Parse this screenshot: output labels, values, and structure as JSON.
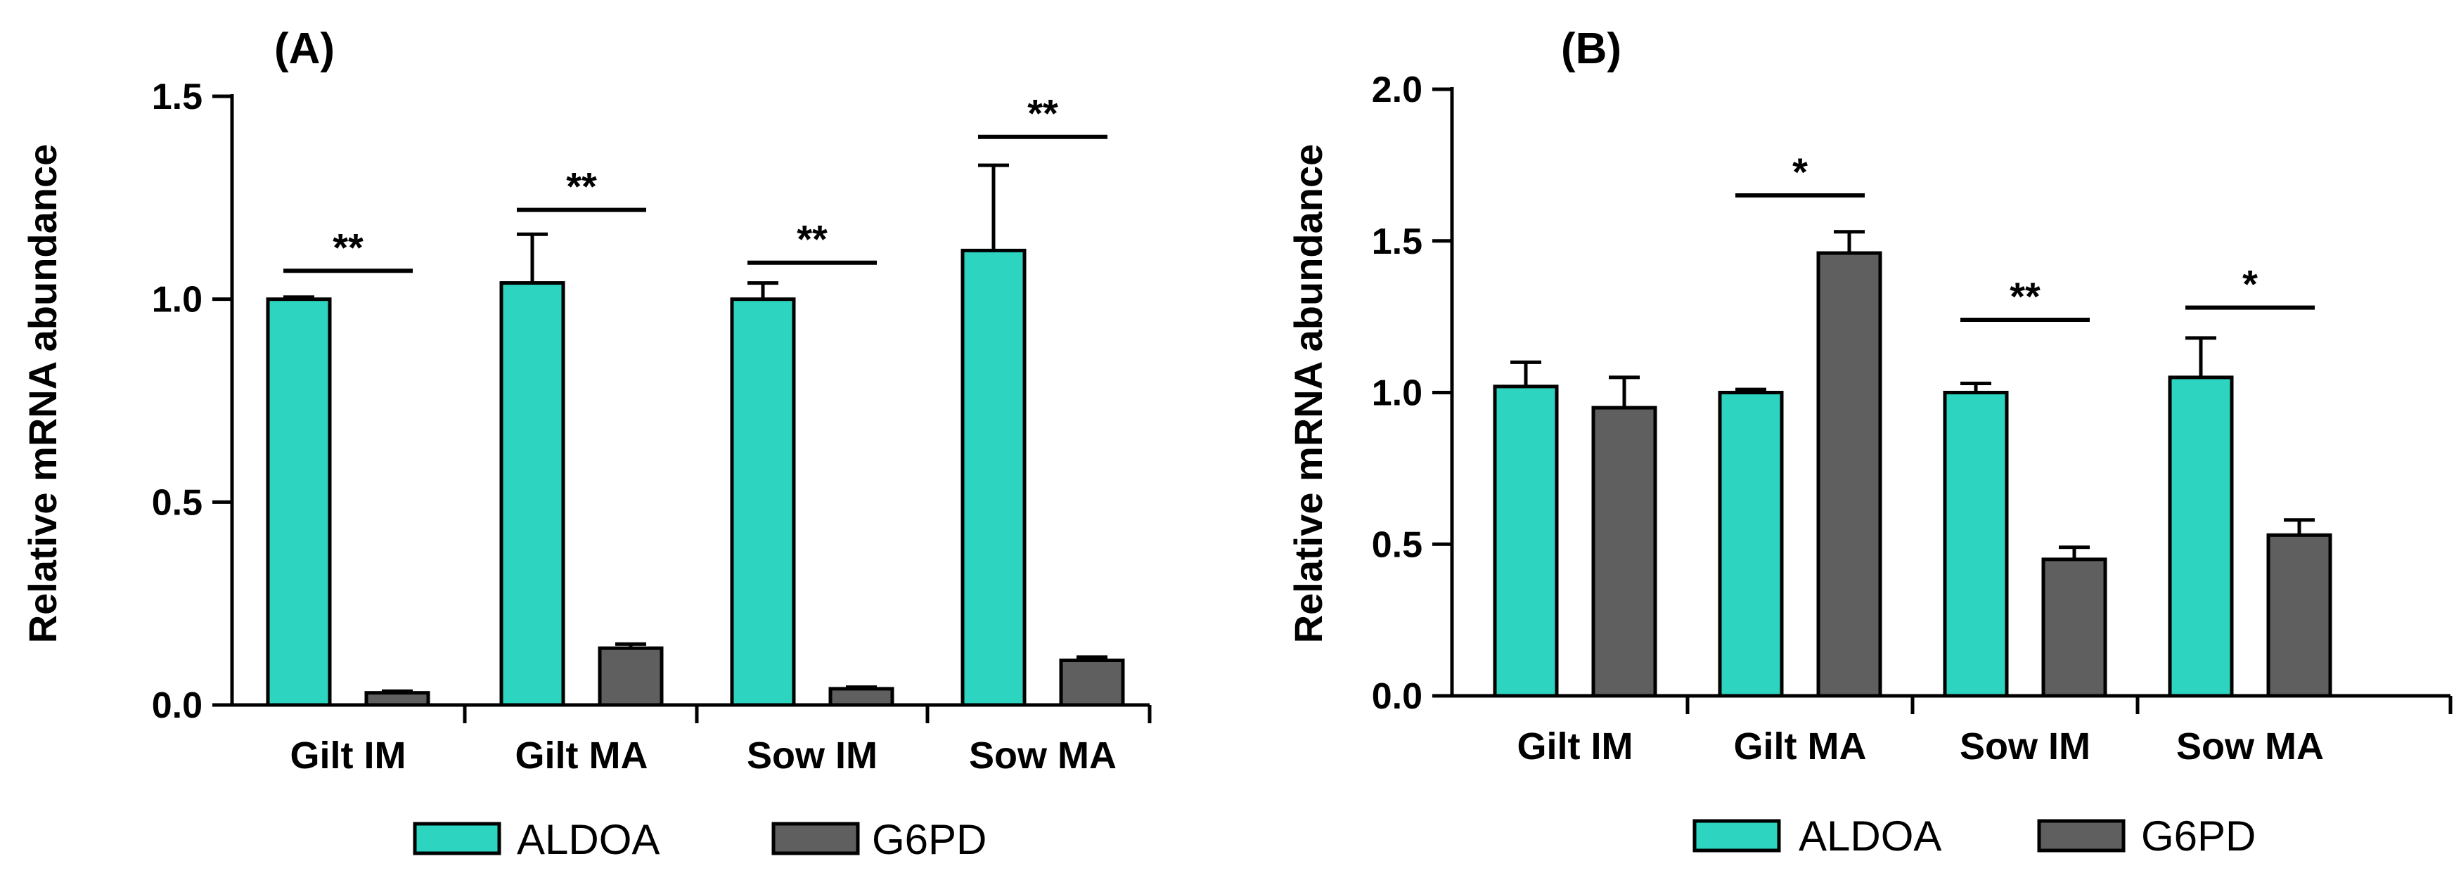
{
  "colors": {
    "ALDOA": "#2dd4bf",
    "G6PD": "#5f5f5f",
    "axis": "#000000"
  },
  "chart_data": [
    {
      "type": "bar",
      "panel": "(A)",
      "ylabel": "Relative mRNA abundance",
      "ylim": [
        0,
        1.5
      ],
      "yticks": [
        "0.0",
        "0.5",
        "1.0",
        "1.5"
      ],
      "categories": [
        "Gilt IM",
        "Gilt MA",
        "Sow IM",
        "Sow MA"
      ],
      "series": [
        {
          "name": "ALDOA",
          "values": [
            1.0,
            1.04,
            1.0,
            1.12
          ],
          "errors": [
            0.005,
            0.12,
            0.04,
            0.21
          ]
        },
        {
          "name": "G6PD",
          "values": [
            0.03,
            0.14,
            0.04,
            0.11
          ],
          "errors": [
            0.004,
            0.01,
            0.004,
            0.008
          ]
        }
      ],
      "significance": [
        "**",
        "**",
        "**",
        "**"
      ],
      "sig_levels": [
        1.07,
        1.22,
        1.09,
        1.4
      ],
      "legend": [
        "ALDOA",
        "G6PD"
      ],
      "legend_position": "bottom"
    },
    {
      "type": "bar",
      "panel": "(B)",
      "ylabel": "Relative mRNA abundance",
      "ylim": [
        0,
        2.0
      ],
      "yticks": [
        "0.0",
        "0.5",
        "1.0",
        "1.5",
        "2.0"
      ],
      "categories": [
        "Gilt IM",
        "Gilt MA",
        "Sow IM",
        "Sow MA"
      ],
      "series": [
        {
          "name": "ALDOA",
          "values": [
            1.02,
            1.0,
            1.0,
            1.05
          ],
          "errors": [
            0.08,
            0.01,
            0.03,
            0.13
          ]
        },
        {
          "name": "G6PD",
          "values": [
            0.95,
            1.46,
            0.45,
            0.53
          ],
          "errors": [
            0.1,
            0.07,
            0.04,
            0.05
          ]
        }
      ],
      "significance": [
        "",
        "*",
        "**",
        "*"
      ],
      "sig_levels": [
        0,
        1.65,
        1.24,
        1.28
      ],
      "legend": [
        "ALDOA",
        "G6PD"
      ],
      "legend_position": "bottom"
    }
  ]
}
